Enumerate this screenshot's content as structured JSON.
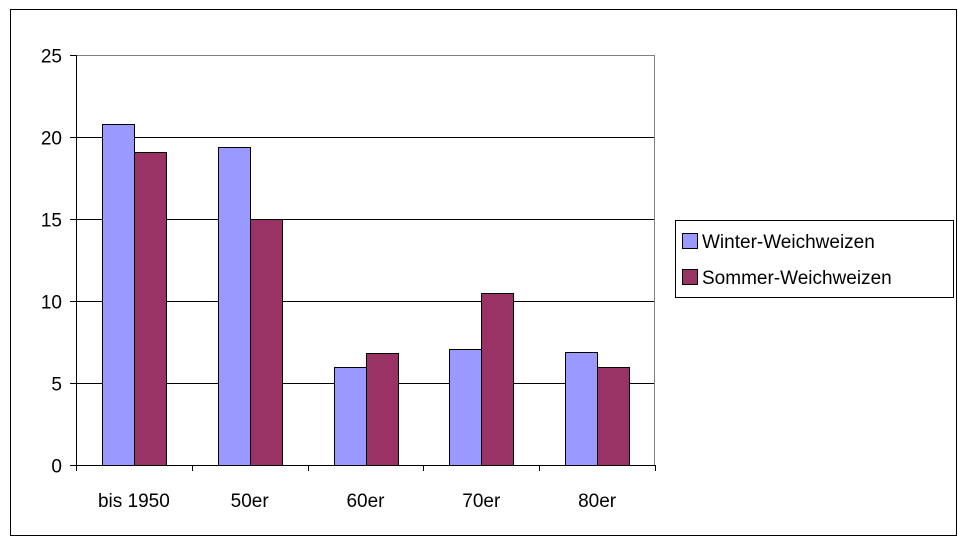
{
  "chart_data": {
    "type": "bar",
    "title": "",
    "xlabel": "",
    "ylabel": "",
    "categories": [
      "bis 1950",
      "50er",
      "60er",
      "70er",
      "80er"
    ],
    "series": [
      {
        "name": "Winter-Weichweizen",
        "values": [
          20.8,
          19.4,
          6.0,
          7.1,
          6.9
        ],
        "color": "#9999ff"
      },
      {
        "name": "Sommer-Weichweizen",
        "values": [
          19.1,
          15.0,
          6.8,
          10.5,
          6.0
        ],
        "color": "#993366"
      }
    ],
    "ylim": [
      0,
      25
    ],
    "yticks": [
      0,
      5,
      10,
      15,
      20,
      25
    ],
    "grid": true,
    "legend": "right",
    "plot_background": "#ffffff",
    "gridline_color": "#000000"
  }
}
